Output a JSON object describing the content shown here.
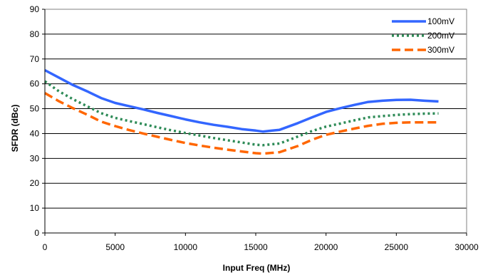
{
  "chart_data": {
    "type": "line",
    "title": "",
    "xlabel": "Input Freq (MHz)",
    "ylabel": "SFDR (dBc)",
    "xlim": [
      0,
      30000
    ],
    "ylim": [
      0,
      90
    ],
    "x_ticks": [
      0,
      5000,
      10000,
      15000,
      20000,
      25000,
      30000
    ],
    "y_ticks": [
      0,
      10,
      20,
      30,
      40,
      50,
      60,
      70,
      80,
      90
    ],
    "grid": "horizontal",
    "legend_position": "top-right",
    "series": [
      {
        "name": "100mV",
        "color": "#3366ff",
        "dash": "solid",
        "points": [
          [
            0,
            65.5
          ],
          [
            1000,
            62.5
          ],
          [
            2000,
            59.5
          ],
          [
            3000,
            57
          ],
          [
            4000,
            54.3
          ],
          [
            5000,
            52.3
          ],
          [
            6000,
            51
          ],
          [
            7000,
            49.7
          ],
          [
            8000,
            48.3
          ],
          [
            9000,
            47
          ],
          [
            10000,
            45.7
          ],
          [
            11000,
            44.5
          ],
          [
            12000,
            43.5
          ],
          [
            13000,
            42.7
          ],
          [
            14000,
            41.8
          ],
          [
            15000,
            41.2
          ],
          [
            15500,
            40.8
          ],
          [
            16700,
            41.5
          ],
          [
            18000,
            44.2
          ],
          [
            19000,
            46.5
          ],
          [
            20000,
            48.7
          ],
          [
            21000,
            50.2
          ],
          [
            22000,
            51.5
          ],
          [
            23000,
            52.7
          ],
          [
            24000,
            53.2
          ],
          [
            25000,
            53.5
          ],
          [
            26000,
            53.6
          ],
          [
            27000,
            53.2
          ],
          [
            28000,
            52.9
          ]
        ]
      },
      {
        "name": "200mV",
        "color": "#2e8b57",
        "dash": "dotted",
        "points": [
          [
            0,
            61
          ],
          [
            1000,
            57
          ],
          [
            2000,
            53.8
          ],
          [
            3000,
            51
          ],
          [
            4000,
            48.2
          ],
          [
            5000,
            46.3
          ],
          [
            6000,
            45
          ],
          [
            7000,
            43.8
          ],
          [
            8000,
            42.5
          ],
          [
            9000,
            41.3
          ],
          [
            10000,
            40.2
          ],
          [
            11000,
            39.2
          ],
          [
            12000,
            38.2
          ],
          [
            13000,
            37.3
          ],
          [
            14000,
            36.4
          ],
          [
            15000,
            35.5
          ],
          [
            15500,
            35.3
          ],
          [
            16700,
            36
          ],
          [
            18000,
            38.8
          ],
          [
            19000,
            41
          ],
          [
            20000,
            42.8
          ],
          [
            21000,
            44
          ],
          [
            22000,
            45.3
          ],
          [
            23000,
            46.5
          ],
          [
            24000,
            47
          ],
          [
            25000,
            47.5
          ],
          [
            26000,
            47.8
          ],
          [
            27000,
            48
          ],
          [
            28000,
            48.1
          ]
        ]
      },
      {
        "name": "300mV",
        "color": "#ff6600",
        "dash": "dashed",
        "points": [
          [
            0,
            56.3
          ],
          [
            1000,
            53
          ],
          [
            2000,
            50.2
          ],
          [
            3000,
            47.6
          ],
          [
            4000,
            44.8
          ],
          [
            5000,
            43
          ],
          [
            6000,
            41.4
          ],
          [
            7000,
            40
          ],
          [
            8000,
            38.7
          ],
          [
            9000,
            37.4
          ],
          [
            10000,
            36.2
          ],
          [
            11000,
            35.2
          ],
          [
            12000,
            34.3
          ],
          [
            13000,
            33.5
          ],
          [
            14000,
            32.8
          ],
          [
            15000,
            32.1
          ],
          [
            15500,
            31.9
          ],
          [
            16700,
            32.5
          ],
          [
            18000,
            35
          ],
          [
            19000,
            37.5
          ],
          [
            20000,
            39.5
          ],
          [
            21000,
            40.8
          ],
          [
            22000,
            42
          ],
          [
            23000,
            43.1
          ],
          [
            24000,
            43.9
          ],
          [
            25000,
            44.3
          ],
          [
            26000,
            44.5
          ],
          [
            27000,
            44.5
          ],
          [
            28000,
            44.5
          ]
        ]
      }
    ]
  }
}
